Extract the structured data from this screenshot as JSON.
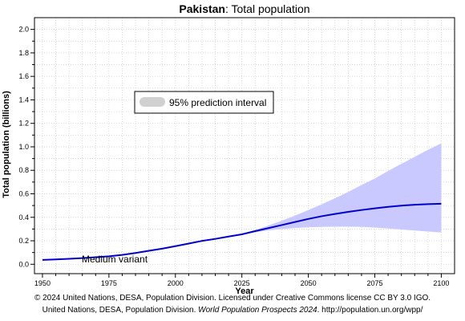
{
  "chart_data": {
    "type": "line",
    "title_bold": "Pakistan",
    "title_rest": ": Total population",
    "xlabel": "Year",
    "ylabel": "Total population (billions)",
    "xlim": [
      1947,
      2105
    ],
    "ylim": [
      -0.08,
      2.1
    ],
    "x_ticks": [
      {
        "v": 1950,
        "label": "1950"
      },
      {
        "v": 1975,
        "label": "1975"
      },
      {
        "v": 2000,
        "label": "2000"
      },
      {
        "v": 2025,
        "label": "2025"
      },
      {
        "v": 2050,
        "label": "2050"
      },
      {
        "v": 2075,
        "label": "2075"
      },
      {
        "v": 2100,
        "label": "2100"
      }
    ],
    "y_ticks": [
      {
        "v": 0.0,
        "label": "0.0"
      },
      {
        "v": 0.2,
        "label": "0.2"
      },
      {
        "v": 0.4,
        "label": "0.4"
      },
      {
        "v": 0.6,
        "label": "0.6"
      },
      {
        "v": 0.8,
        "label": "0.8"
      },
      {
        "v": 1.0,
        "label": "1.0"
      },
      {
        "v": 1.2,
        "label": "1.2"
      },
      {
        "v": 1.4,
        "label": "1.4"
      },
      {
        "v": 1.6,
        "label": "1.6"
      },
      {
        "v": 1.8,
        "label": "1.8"
      },
      {
        "v": 2.0,
        "label": "2.0"
      }
    ],
    "grid": true,
    "series": [
      {
        "name": "Medium variant",
        "color": "#0000cc",
        "x": [
          1950,
          1955,
          1960,
          1965,
          1970,
          1975,
          1980,
          1985,
          1990,
          1995,
          2000,
          2005,
          2010,
          2015,
          2020,
          2025,
          2030,
          2035,
          2040,
          2045,
          2050,
          2055,
          2060,
          2065,
          2070,
          2075,
          2080,
          2085,
          2090,
          2095,
          2100
        ],
        "y": [
          0.037,
          0.041,
          0.046,
          0.052,
          0.06,
          0.068,
          0.08,
          0.096,
          0.115,
          0.133,
          0.154,
          0.176,
          0.199,
          0.216,
          0.236,
          0.255,
          0.282,
          0.308,
          0.334,
          0.36,
          0.386,
          0.409,
          0.428,
          0.446,
          0.462,
          0.476,
          0.489,
          0.499,
          0.507,
          0.512,
          0.515
        ]
      }
    ],
    "prediction_interval": {
      "name": "95% prediction interval",
      "color": "#c9c9ff",
      "x": [
        2024,
        2030,
        2035,
        2040,
        2045,
        2050,
        2055,
        2060,
        2065,
        2070,
        2075,
        2080,
        2085,
        2090,
        2095,
        2100
      ],
      "upper": [
        0.251,
        0.292,
        0.33,
        0.371,
        0.415,
        0.462,
        0.51,
        0.562,
        0.615,
        0.675,
        0.73,
        0.795,
        0.855,
        0.915,
        0.975,
        1.03
      ],
      "lower": [
        0.251,
        0.272,
        0.288,
        0.3,
        0.309,
        0.315,
        0.318,
        0.32,
        0.32,
        0.318,
        0.312,
        0.304,
        0.296,
        0.287,
        0.279,
        0.27
      ]
    },
    "legend": {
      "placement": "upper-left-inside",
      "label": "95% prediction interval"
    },
    "annotation": "Medium variant"
  },
  "footer": {
    "line1": "© 2024 United Nations, DESA, Population Division. Licensed under Creative Commons license CC BY 3.0 IGO.",
    "line2_prefix": "United Nations, DESA, Population Division. ",
    "line2_italic": "World Population Prospects 2024",
    "line2_suffix": ". http://population.un.org/wpp/"
  }
}
